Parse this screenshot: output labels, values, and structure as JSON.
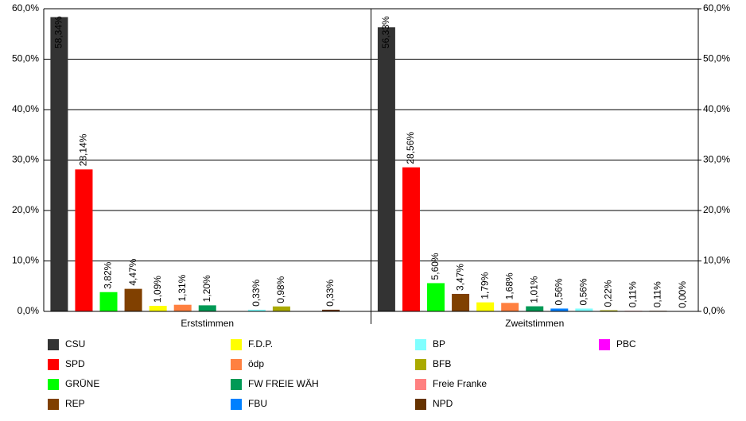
{
  "chart_data": {
    "type": "bar",
    "categories": [
      "Erststimmen",
      "Zweitstimmen"
    ],
    "series": [
      {
        "name": "CSU",
        "color": "#333333",
        "values": [
          58.34,
          56.33
        ],
        "value_labels": [
          "58,34%",
          "56,33%"
        ]
      },
      {
        "name": "SPD",
        "color": "#ff0000",
        "values": [
          28.14,
          28.56
        ],
        "value_labels": [
          "28,14%",
          "28,56%"
        ]
      },
      {
        "name": "GRÜNE",
        "color": "#00ff00",
        "values": [
          3.82,
          5.6
        ],
        "value_labels": [
          "3,82%",
          "5,60%"
        ]
      },
      {
        "name": "REP",
        "color": "#804000",
        "values": [
          4.47,
          3.47
        ],
        "value_labels": [
          "4,47%",
          "3,47%"
        ]
      },
      {
        "name": "F.D.P.",
        "color": "#ffff00",
        "values": [
          1.09,
          1.79
        ],
        "value_labels": [
          "1,09%",
          "1,79%"
        ]
      },
      {
        "name": "ödp",
        "color": "#ff8040",
        "values": [
          1.31,
          1.68
        ],
        "value_labels": [
          "1,31%",
          "1,68%"
        ]
      },
      {
        "name": "FW FREIE WÄH",
        "color": "#009955",
        "values": [
          1.2,
          1.01
        ],
        "value_labels": [
          "1,20%",
          "1,01%"
        ]
      },
      {
        "name": "FBU",
        "color": "#0080ff",
        "values": [
          null,
          0.56
        ],
        "value_labels": [
          null,
          "0,56%"
        ]
      },
      {
        "name": "BP",
        "color": "#80ffff",
        "values": [
          0.33,
          0.56
        ],
        "value_labels": [
          "0,33%",
          "0,56%"
        ]
      },
      {
        "name": "BFB",
        "color": "#aaaa00",
        "values": [
          0.98,
          0.22
        ],
        "value_labels": [
          "0,98%",
          "0,22%"
        ]
      },
      {
        "name": "Freie Franke",
        "color": "#ff8080",
        "values": [
          null,
          0.11
        ],
        "value_labels": [
          null,
          "0,11%"
        ]
      },
      {
        "name": "NPD",
        "color": "#663300",
        "values": [
          0.33,
          0.11
        ],
        "value_labels": [
          "0,33%",
          "0,11%"
        ]
      },
      {
        "name": "PBC",
        "color": "#ff00ff",
        "values": [
          null,
          0
        ],
        "value_labels": [
          null,
          "0,00%"
        ]
      }
    ],
    "ylim": [
      0,
      60
    ],
    "yticks": [
      {
        "value": 0,
        "label": "0,0%"
      },
      {
        "value": 10,
        "label": "10,0%"
      },
      {
        "value": 20,
        "label": "20,0%"
      },
      {
        "value": 30,
        "label": "30,0%"
      },
      {
        "value": 40,
        "label": "40,0%"
      },
      {
        "value": 50,
        "label": "50,0%"
      },
      {
        "value": 60,
        "label": "60,0%"
      }
    ],
    "y2lim": [
      0,
      60
    ],
    "y2ticks": [
      {
        "value": 0,
        "label": "0,0%"
      },
      {
        "value": 10,
        "label": "10,0%"
      },
      {
        "value": 20,
        "label": "20,0%"
      },
      {
        "value": 30,
        "label": "30,0%"
      },
      {
        "value": 40,
        "label": "40,0%"
      },
      {
        "value": 50,
        "label": "50,0%"
      },
      {
        "value": 60,
        "label": "60,0%"
      }
    ],
    "grid": true
  }
}
